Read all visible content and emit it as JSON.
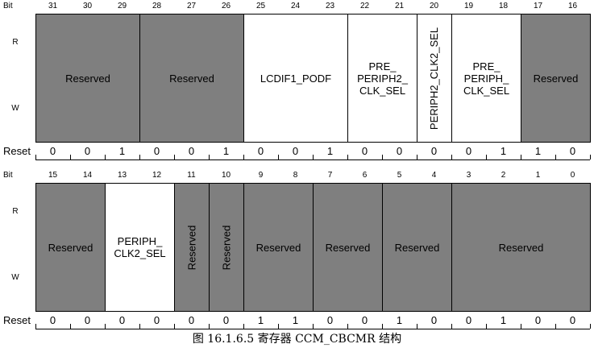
{
  "labels": {
    "bit": "Bit",
    "read": "R",
    "write": "W",
    "reset": "Reset"
  },
  "upper": {
    "bits": [
      "31",
      "30",
      "29",
      "28",
      "27",
      "26",
      "25",
      "24",
      "23",
      "22",
      "21",
      "20",
      "19",
      "18",
      "17",
      "16"
    ],
    "fields": [
      {
        "name": "Reserved",
        "span": 3,
        "shade": "gray",
        "vertical": false
      },
      {
        "name": "Reserved",
        "span": 3,
        "shade": "gray",
        "vertical": false
      },
      {
        "name": "LCDIF1_PODF",
        "span": 3,
        "shade": "white",
        "vertical": false
      },
      {
        "name": "PRE_\nPERIPH2_\nCLK_SEL",
        "span": 2,
        "shade": "white",
        "vertical": false
      },
      {
        "name": "PERIPH2_CLK2_SEL",
        "span": 1,
        "shade": "white",
        "vertical": true
      },
      {
        "name": "PRE_\nPERIPH_\nCLK_SEL",
        "span": 2,
        "shade": "white",
        "vertical": false
      },
      {
        "name": "Reserved",
        "span": 2,
        "shade": "gray",
        "vertical": false
      }
    ],
    "reset": [
      "0",
      "0",
      "1",
      "0",
      "0",
      "1",
      "0",
      "0",
      "1",
      "0",
      "0",
      "0",
      "0",
      "1",
      "1",
      "0"
    ]
  },
  "lower": {
    "bits": [
      "15",
      "14",
      "13",
      "12",
      "11",
      "10",
      "9",
      "8",
      "7",
      "6",
      "5",
      "4",
      "3",
      "2",
      "1",
      "0"
    ],
    "fields": [
      {
        "name": "Reserved",
        "span": 2,
        "shade": "gray",
        "vertical": false
      },
      {
        "name": "PERIPH_\nCLK2_SEL",
        "span": 2,
        "shade": "white",
        "vertical": false
      },
      {
        "name": "Reserved",
        "span": 1,
        "shade": "gray",
        "vertical": true
      },
      {
        "name": "Reserved",
        "span": 1,
        "shade": "gray",
        "vertical": true
      },
      {
        "name": "Reserved",
        "span": 2,
        "shade": "gray",
        "vertical": false
      },
      {
        "name": "Reserved",
        "span": 2,
        "shade": "gray",
        "vertical": false
      },
      {
        "name": "Reserved",
        "span": 2,
        "shade": "gray",
        "vertical": false
      },
      {
        "name": "Reserved",
        "span": 4,
        "shade": "gray",
        "vertical": false
      }
    ],
    "reset": [
      "0",
      "0",
      "0",
      "0",
      "0",
      "0",
      "1",
      "1",
      "0",
      "0",
      "1",
      "0",
      "0",
      "1",
      "0",
      "0"
    ]
  },
  "caption": "图 16.1.6.5 寄存器 CCM_CBCMR 结构",
  "colors": {
    "reserved": "#7f7f7f",
    "field": "#ffffff",
    "line": "#000000"
  }
}
